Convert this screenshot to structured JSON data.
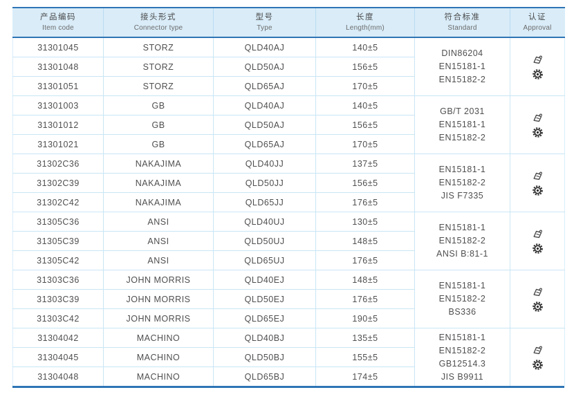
{
  "colors": {
    "header_bg": "#d9ecf8",
    "accent_line": "#2e74b5",
    "grid_line": "#c9e6f5",
    "text_primary": "#4f4f4f",
    "text_secondary": "#6b6b6b"
  },
  "table": {
    "columns": [
      {
        "zh": "产品编码",
        "en": "Item code"
      },
      {
        "zh": "接头形式",
        "en": "Connector type"
      },
      {
        "zh": "型号",
        "en": "Type"
      },
      {
        "zh": "长度",
        "en": "Length(mm)"
      },
      {
        "zh": "符合标准",
        "en": "Standard"
      },
      {
        "zh": "认证",
        "en": "Approval"
      }
    ],
    "approval_icons": [
      "stamp-approval-icon",
      "gear-certification-icon"
    ],
    "groups": [
      {
        "rows": [
          {
            "item_code": "31301045",
            "connector_type": "STORZ",
            "type": "QLD40AJ",
            "length": "140±5"
          },
          {
            "item_code": "31301048",
            "connector_type": "STORZ",
            "type": "QLD50AJ",
            "length": "156±5"
          },
          {
            "item_code": "31301051",
            "connector_type": "STORZ",
            "type": "QLD65AJ",
            "length": "170±5"
          }
        ],
        "standards": [
          "DIN86204",
          "EN15181-1",
          "EN15182-2"
        ]
      },
      {
        "rows": [
          {
            "item_code": "31301003",
            "connector_type": "GB",
            "type": "QLD40AJ",
            "length": "140±5"
          },
          {
            "item_code": "31301012",
            "connector_type": "GB",
            "type": "QLD50AJ",
            "length": "156±5"
          },
          {
            "item_code": "31301021",
            "connector_type": "GB",
            "type": "QLD65AJ",
            "length": "170±5"
          }
        ],
        "standards": [
          "GB/T 2031",
          "EN15181-1",
          "EN15182-2"
        ]
      },
      {
        "rows": [
          {
            "item_code": "31302C36",
            "connector_type": "NAKAJIMA",
            "type": "QLD40JJ",
            "length": "137±5"
          },
          {
            "item_code": "31302C39",
            "connector_type": "NAKAJIMA",
            "type": "QLD50JJ",
            "length": "156±5"
          },
          {
            "item_code": "31302C42",
            "connector_type": "NAKAJIMA",
            "type": "QLD65JJ",
            "length": "176±5"
          }
        ],
        "standards": [
          "EN15181-1",
          "EN15182-2",
          "JIS F7335"
        ]
      },
      {
        "rows": [
          {
            "item_code": "31305C36",
            "connector_type": "ANSI",
            "type": "QLD40UJ",
            "length": "130±5"
          },
          {
            "item_code": "31305C39",
            "connector_type": "ANSI",
            "type": "QLD50UJ",
            "length": "148±5"
          },
          {
            "item_code": "31305C42",
            "connector_type": "ANSI",
            "type": "QLD65UJ",
            "length": "176±5"
          }
        ],
        "standards": [
          "EN15181-1",
          "EN15182-2",
          "ANSI B:81-1"
        ]
      },
      {
        "rows": [
          {
            "item_code": "31303C36",
            "connector_type": "JOHN MORRIS",
            "type": "QLD40EJ",
            "length": "148±5"
          },
          {
            "item_code": "31303C39",
            "connector_type": "JOHN MORRIS",
            "type": "QLD50EJ",
            "length": "176±5"
          },
          {
            "item_code": "31303C42",
            "connector_type": "JOHN MORRIS",
            "type": "QLD65EJ",
            "length": "190±5"
          }
        ],
        "standards": [
          "EN15181-1",
          "EN15182-2",
          "BS336"
        ]
      },
      {
        "rows": [
          {
            "item_code": "31304042",
            "connector_type": "MACHINO",
            "type": "QLD40BJ",
            "length": "135±5"
          },
          {
            "item_code": "31304045",
            "connector_type": "MACHINO",
            "type": "QLD50BJ",
            "length": "155±5"
          },
          {
            "item_code": "31304048",
            "connector_type": "MACHINO",
            "type": "QLD65BJ",
            "length": "174±5"
          }
        ],
        "standards": [
          "EN15181-1",
          "EN15182-2",
          "GB12514.3",
          "JIS B9911"
        ]
      }
    ]
  }
}
